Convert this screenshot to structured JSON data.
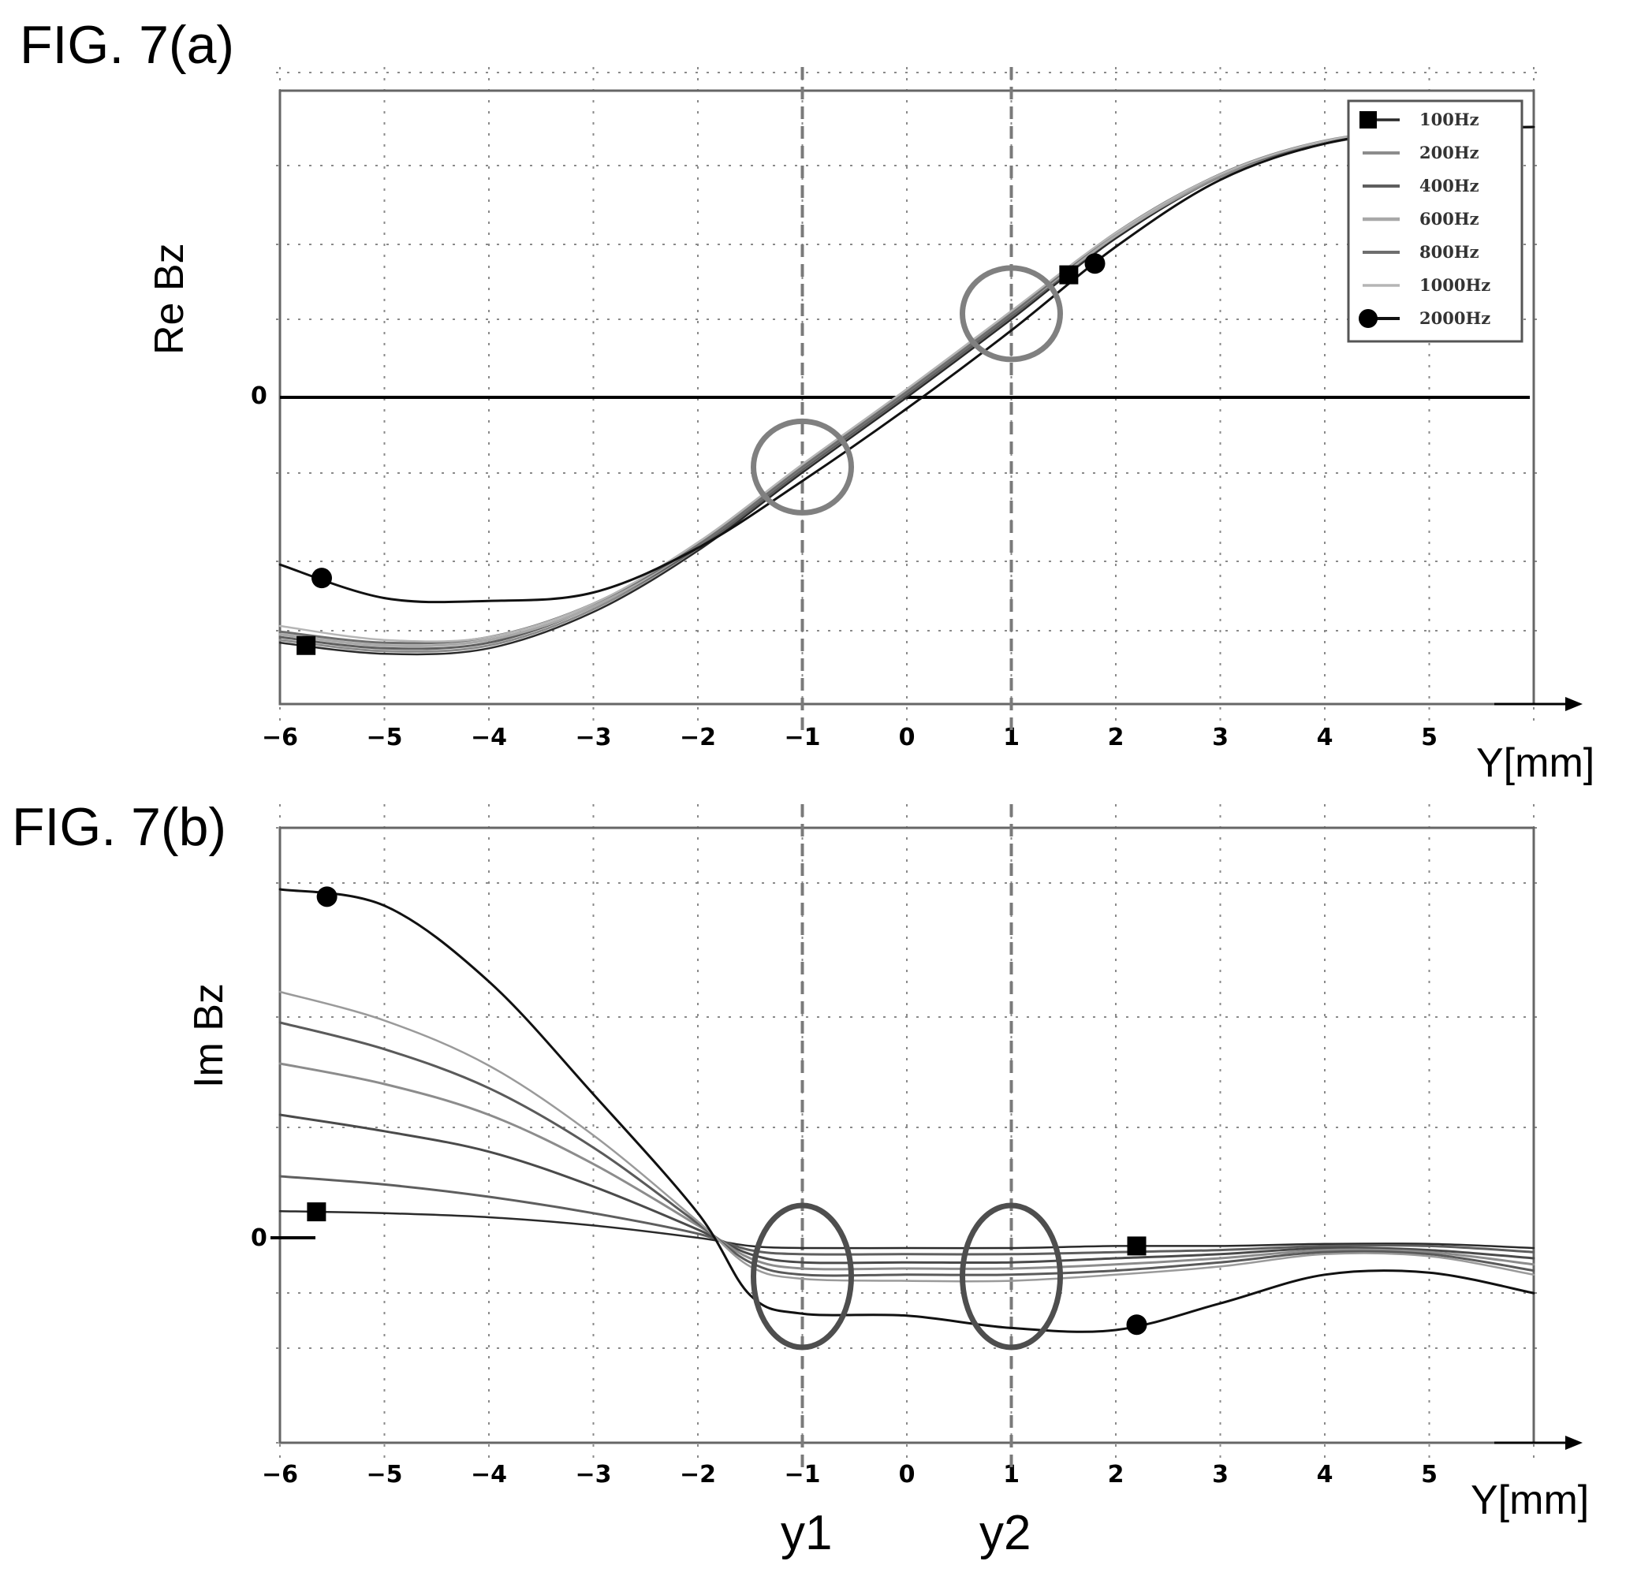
{
  "figure_a": {
    "title": "FIG. 7(a)",
    "ylabel": "Re Bz",
    "xlabel": "Y[mm]",
    "zero_label": "0"
  },
  "figure_b": {
    "title": "FIG. 7(b)",
    "ylabel": "Im Bz",
    "xlabel": "Y[mm]",
    "zero_label": "0"
  },
  "markers": [
    "y1",
    "y2"
  ],
  "x_ticks": [
    "−6",
    "−5",
    "−4",
    "−3",
    "−2",
    "−1",
    "0",
    "1",
    "2",
    "3",
    "4",
    "5"
  ],
  "chart_data": [
    {
      "type": "line",
      "title": "FIG. 7(a)",
      "xlabel": "Y[mm]",
      "ylabel": "Re Bz",
      "xlim": [
        -6,
        6
      ],
      "ylim": [
        -1.1,
        1.1
      ],
      "grid": true,
      "legend_position": "top-right",
      "zero_line": 0,
      "reference_lines_x": [
        -1,
        1
      ],
      "highlight_circles_x": [
        -1,
        1
      ],
      "x": [
        -6,
        -5,
        -4,
        -3,
        -2,
        -1,
        0,
        1,
        2,
        3,
        4,
        5,
        6
      ],
      "series": [
        {
          "name": "100Hz",
          "marker": "square",
          "color": "#2a2a2a",
          "width": 2.5,
          "values": [
            -0.88,
            -0.92,
            -0.9,
            -0.77,
            -0.55,
            -0.27,
            0.0,
            0.28,
            0.57,
            0.79,
            0.91,
            0.96,
            0.97
          ]
        },
        {
          "name": "200Hz",
          "marker": "none",
          "color": "#8c8c8c",
          "width": 3,
          "values": [
            -0.87,
            -0.91,
            -0.89,
            -0.76,
            -0.54,
            -0.26,
            0.01,
            0.29,
            0.58,
            0.79,
            0.91,
            0.96,
            0.97
          ]
        },
        {
          "name": "400Hz",
          "marker": "none",
          "color": "#5e5e5e",
          "width": 3,
          "values": [
            -0.86,
            -0.9,
            -0.88,
            -0.75,
            -0.54,
            -0.26,
            0.01,
            0.29,
            0.58,
            0.8,
            0.91,
            0.96,
            0.97
          ]
        },
        {
          "name": "600Hz",
          "marker": "none",
          "color": "#a8a8a8",
          "width": 3.5,
          "values": [
            -0.85,
            -0.89,
            -0.87,
            -0.75,
            -0.53,
            -0.25,
            0.02,
            0.3,
            0.58,
            0.8,
            0.92,
            0.96,
            0.97
          ]
        },
        {
          "name": "800Hz",
          "marker": "none",
          "color": "#6e6e6e",
          "width": 3,
          "values": [
            -0.84,
            -0.88,
            -0.86,
            -0.74,
            -0.53,
            -0.25,
            0.02,
            0.3,
            0.59,
            0.8,
            0.92,
            0.96,
            0.97
          ]
        },
        {
          "name": "1000Hz",
          "marker": "none",
          "color": "#b5b5b5",
          "width": 2.5,
          "values": [
            -0.82,
            -0.87,
            -0.86,
            -0.74,
            -0.52,
            -0.24,
            0.03,
            0.31,
            0.59,
            0.8,
            0.92,
            0.96,
            0.97
          ]
        },
        {
          "name": "2000Hz",
          "marker": "circle",
          "color": "#111111",
          "width": 3,
          "values": [
            -0.6,
            -0.72,
            -0.73,
            -0.7,
            -0.54,
            -0.3,
            -0.04,
            0.24,
            0.54,
            0.78,
            0.91,
            0.96,
            0.97
          ]
        }
      ]
    },
    {
      "type": "line",
      "title": "FIG. 7(b)",
      "xlabel": "Y[mm]",
      "ylabel": "Im Bz",
      "xlim": [
        -6,
        6
      ],
      "ylim": [
        -1.0,
        2.0
      ],
      "grid": true,
      "legend_position": "none",
      "zero_line": 0,
      "reference_lines_x": [
        -1,
        1
      ],
      "highlight_circles_x": [
        -1,
        1
      ],
      "x": [
        -6,
        -5,
        -4,
        -3,
        -2,
        -1.5,
        -1,
        0,
        1,
        2,
        3,
        4,
        5,
        6
      ],
      "series": [
        {
          "name": "100Hz",
          "marker": "square",
          "color": "#2a2a2a",
          "width": 2.5,
          "values": [
            0.13,
            0.12,
            0.1,
            0.06,
            0.0,
            -0.04,
            -0.05,
            -0.05,
            -0.05,
            -0.04,
            -0.04,
            -0.03,
            -0.03,
            -0.05
          ]
        },
        {
          "name": "200Hz",
          "marker": "none",
          "color": "#5e5e5e",
          "width": 3,
          "values": [
            0.3,
            0.26,
            0.2,
            0.12,
            0.02,
            -0.06,
            -0.08,
            -0.08,
            -0.08,
            -0.07,
            -0.06,
            -0.04,
            -0.04,
            -0.07
          ]
        },
        {
          "name": "400Hz",
          "marker": "none",
          "color": "#4a4a4a",
          "width": 3,
          "values": [
            0.6,
            0.52,
            0.42,
            0.25,
            0.04,
            -0.08,
            -0.12,
            -0.12,
            -0.12,
            -0.1,
            -0.08,
            -0.05,
            -0.06,
            -0.1
          ]
        },
        {
          "name": "600Hz",
          "marker": "none",
          "color": "#8c8c8c",
          "width": 3,
          "values": [
            0.85,
            0.75,
            0.6,
            0.36,
            0.06,
            -0.1,
            -0.15,
            -0.15,
            -0.15,
            -0.13,
            -0.1,
            -0.06,
            -0.07,
            -0.13
          ]
        },
        {
          "name": "800Hz",
          "marker": "none",
          "color": "#5a5a5a",
          "width": 3,
          "values": [
            1.05,
            0.92,
            0.73,
            0.44,
            0.07,
            -0.12,
            -0.18,
            -0.18,
            -0.18,
            -0.16,
            -0.12,
            -0.07,
            -0.08,
            -0.16
          ]
        },
        {
          "name": "1000Hz",
          "marker": "none",
          "color": "#9a9a9a",
          "width": 2.5,
          "values": [
            1.2,
            1.06,
            0.84,
            0.5,
            0.08,
            -0.14,
            -0.2,
            -0.21,
            -0.21,
            -0.18,
            -0.14,
            -0.08,
            -0.09,
            -0.18
          ]
        },
        {
          "name": "2000Hz",
          "marker": "circle",
          "color": "#111111",
          "width": 3,
          "values": [
            1.7,
            1.62,
            1.25,
            0.7,
            0.12,
            -0.28,
            -0.37,
            -0.38,
            -0.44,
            -0.45,
            -0.32,
            -0.18,
            -0.17,
            -0.27
          ]
        }
      ]
    }
  ]
}
